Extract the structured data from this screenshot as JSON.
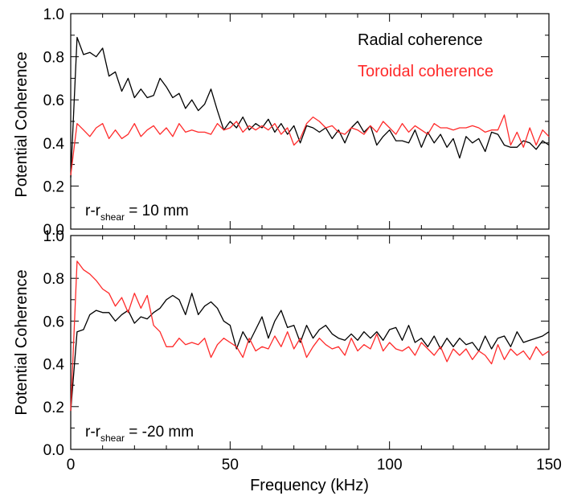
{
  "chart_data": [
    {
      "type": "line",
      "ylabel": "Potential Coherence",
      "xlabel": "",
      "xlim": [
        0,
        150
      ],
      "ylim": [
        0.0,
        1.0
      ],
      "yticks": [
        "0.0",
        "0.2",
        "0.4",
        "0.6",
        "0.8",
        "1.0"
      ],
      "xticks": [
        0,
        50,
        100,
        150
      ],
      "xtick_labels": [
        "",
        "",
        "",
        ""
      ],
      "annotation": {
        "base": "r-r",
        "subscript": "shear",
        "suffix": " = 10 mm"
      },
      "series": [
        {
          "name": "Radial coherence",
          "color": "#000000",
          "x": [
            0,
            2,
            4,
            6,
            8,
            10,
            12,
            14,
            16,
            18,
            20,
            22,
            24,
            26,
            28,
            30,
            32,
            34,
            36,
            38,
            40,
            42,
            44,
            46,
            48,
            50,
            52,
            54,
            56,
            58,
            60,
            62,
            64,
            66,
            68,
            70,
            72,
            74,
            76,
            78,
            80,
            82,
            84,
            86,
            88,
            90,
            92,
            94,
            96,
            98,
            100,
            102,
            104,
            106,
            108,
            110,
            112,
            114,
            116,
            118,
            120,
            122,
            124,
            126,
            128,
            130,
            132,
            134,
            136,
            138,
            140,
            142,
            144,
            146,
            148,
            150
          ],
          "values": [
            0.24,
            0.89,
            0.81,
            0.82,
            0.8,
            0.84,
            0.71,
            0.73,
            0.64,
            0.7,
            0.61,
            0.65,
            0.61,
            0.62,
            0.7,
            0.66,
            0.61,
            0.63,
            0.56,
            0.6,
            0.55,
            0.58,
            0.65,
            0.55,
            0.46,
            0.5,
            0.47,
            0.52,
            0.46,
            0.49,
            0.47,
            0.51,
            0.45,
            0.49,
            0.44,
            0.48,
            0.4,
            0.48,
            0.47,
            0.45,
            0.47,
            0.42,
            0.46,
            0.4,
            0.47,
            0.5,
            0.45,
            0.48,
            0.39,
            0.43,
            0.46,
            0.41,
            0.41,
            0.4,
            0.46,
            0.38,
            0.45,
            0.4,
            0.44,
            0.38,
            0.42,
            0.33,
            0.43,
            0.4,
            0.42,
            0.36,
            0.45,
            0.44,
            0.39,
            0.38,
            0.38,
            0.41,
            0.4,
            0.37,
            0.41,
            0.39
          ]
        },
        {
          "name": "Toroidal coherence",
          "color": "#ff2a2a",
          "x": [
            0,
            2,
            4,
            6,
            8,
            10,
            12,
            14,
            16,
            18,
            20,
            22,
            24,
            26,
            28,
            30,
            32,
            34,
            36,
            38,
            40,
            42,
            44,
            46,
            48,
            50,
            52,
            54,
            56,
            58,
            60,
            62,
            64,
            66,
            68,
            70,
            72,
            74,
            76,
            78,
            80,
            82,
            84,
            86,
            88,
            90,
            92,
            94,
            96,
            98,
            100,
            102,
            104,
            106,
            108,
            110,
            112,
            114,
            116,
            118,
            120,
            122,
            124,
            126,
            128,
            130,
            132,
            134,
            136,
            138,
            140,
            142,
            144,
            146,
            148,
            150
          ],
          "values": [
            0.25,
            0.49,
            0.46,
            0.43,
            0.47,
            0.49,
            0.42,
            0.46,
            0.42,
            0.44,
            0.49,
            0.43,
            0.46,
            0.48,
            0.44,
            0.47,
            0.43,
            0.49,
            0.45,
            0.46,
            0.45,
            0.45,
            0.44,
            0.49,
            0.46,
            0.47,
            0.5,
            0.45,
            0.48,
            0.46,
            0.48,
            0.46,
            0.49,
            0.44,
            0.47,
            0.39,
            0.42,
            0.49,
            0.52,
            0.5,
            0.47,
            0.48,
            0.45,
            0.44,
            0.47,
            0.46,
            0.44,
            0.48,
            0.45,
            0.5,
            0.47,
            0.44,
            0.49,
            0.45,
            0.48,
            0.46,
            0.44,
            0.49,
            0.47,
            0.47,
            0.46,
            0.47,
            0.47,
            0.48,
            0.47,
            0.45,
            0.46,
            0.46,
            0.53,
            0.39,
            0.45,
            0.38,
            0.47,
            0.39,
            0.46,
            0.43
          ]
        }
      ]
    },
    {
      "type": "line",
      "ylabel": "Potential Coherence",
      "xlabel": "Frequency (kHz)",
      "xlim": [
        0,
        150
      ],
      "ylim": [
        0.0,
        1.0
      ],
      "yticks": [
        "0.0",
        "0.2",
        "0.4",
        "0.6",
        "0.8",
        "1.0"
      ],
      "xticks": [
        0,
        50,
        100,
        150
      ],
      "xtick_labels": [
        "0",
        "50",
        "100",
        "150"
      ],
      "annotation": {
        "base": "r-r",
        "subscript": "shear",
        "suffix": " = -20 mm"
      },
      "series": [
        {
          "name": "",
          "color": "#000000",
          "x": [
            0,
            2,
            4,
            6,
            8,
            10,
            12,
            14,
            16,
            18,
            20,
            22,
            24,
            26,
            28,
            30,
            32,
            34,
            36,
            38,
            40,
            42,
            44,
            46,
            48,
            50,
            52,
            54,
            56,
            58,
            60,
            62,
            64,
            66,
            68,
            70,
            72,
            74,
            76,
            78,
            80,
            82,
            84,
            86,
            88,
            90,
            92,
            94,
            96,
            98,
            100,
            102,
            104,
            106,
            108,
            110,
            112,
            114,
            116,
            118,
            120,
            122,
            124,
            126,
            128,
            130,
            132,
            134,
            136,
            138,
            140,
            142,
            144,
            146,
            148,
            150
          ],
          "values": [
            0.18,
            0.55,
            0.56,
            0.63,
            0.65,
            0.64,
            0.64,
            0.6,
            0.63,
            0.65,
            0.59,
            0.62,
            0.61,
            0.64,
            0.66,
            0.7,
            0.72,
            0.7,
            0.63,
            0.73,
            0.63,
            0.67,
            0.69,
            0.66,
            0.6,
            0.58,
            0.47,
            0.55,
            0.5,
            0.56,
            0.62,
            0.52,
            0.6,
            0.65,
            0.57,
            0.58,
            0.5,
            0.58,
            0.52,
            0.56,
            0.58,
            0.54,
            0.52,
            0.51,
            0.54,
            0.51,
            0.55,
            0.52,
            0.55,
            0.51,
            0.56,
            0.57,
            0.51,
            0.58,
            0.5,
            0.52,
            0.48,
            0.53,
            0.47,
            0.52,
            0.48,
            0.52,
            0.49,
            0.5,
            0.46,
            0.53,
            0.47,
            0.52,
            0.53,
            0.48,
            0.55,
            0.5,
            0.51,
            0.52,
            0.53,
            0.55
          ]
        },
        {
          "name": "",
          "color": "#ff2a2a",
          "x": [
            0,
            2,
            4,
            6,
            8,
            10,
            12,
            14,
            16,
            18,
            20,
            22,
            24,
            26,
            28,
            30,
            32,
            34,
            36,
            38,
            40,
            42,
            44,
            46,
            48,
            50,
            52,
            54,
            56,
            58,
            60,
            62,
            64,
            66,
            68,
            70,
            72,
            74,
            76,
            78,
            80,
            82,
            84,
            86,
            88,
            90,
            92,
            94,
            96,
            98,
            100,
            102,
            104,
            106,
            108,
            110,
            112,
            114,
            116,
            118,
            120,
            122,
            124,
            126,
            128,
            130,
            132,
            134,
            136,
            138,
            140,
            142,
            144,
            146,
            148,
            150
          ],
          "values": [
            0.18,
            0.88,
            0.84,
            0.82,
            0.79,
            0.75,
            0.73,
            0.67,
            0.71,
            0.64,
            0.73,
            0.66,
            0.72,
            0.58,
            0.55,
            0.48,
            0.48,
            0.52,
            0.49,
            0.5,
            0.49,
            0.52,
            0.43,
            0.49,
            0.52,
            0.5,
            0.48,
            0.43,
            0.52,
            0.46,
            0.48,
            0.47,
            0.53,
            0.48,
            0.55,
            0.47,
            0.52,
            0.43,
            0.48,
            0.52,
            0.49,
            0.47,
            0.48,
            0.44,
            0.52,
            0.46,
            0.49,
            0.47,
            0.54,
            0.46,
            0.5,
            0.47,
            0.46,
            0.48,
            0.44,
            0.5,
            0.47,
            0.44,
            0.48,
            0.41,
            0.47,
            0.44,
            0.47,
            0.42,
            0.46,
            0.44,
            0.4,
            0.49,
            0.42,
            0.47,
            0.44,
            0.46,
            0.42,
            0.48,
            0.44,
            0.46
          ]
        }
      ]
    }
  ]
}
